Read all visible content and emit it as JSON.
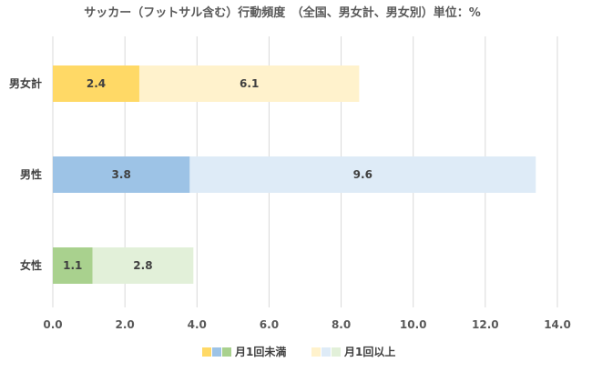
{
  "chart_data": {
    "type": "bar",
    "orientation": "horizontal",
    "stacked": true,
    "title": "サッカー（フットサル含む）行動頻度　（全国、男女計、男女別）単位：%",
    "categories": [
      "男女計",
      "男性",
      "女性"
    ],
    "series": [
      {
        "name": "月1回未満",
        "values": [
          2.4,
          3.8,
          1.1
        ],
        "colors": [
          "#ffd966",
          "#9dc3e6",
          "#a9d18e"
        ]
      },
      {
        "name": "月1回以上",
        "values": [
          6.1,
          9.6,
          2.8
        ],
        "colors": [
          "#fff2cc",
          "#deebf7",
          "#e2f0d9"
        ]
      }
    ],
    "xlim": [
      0,
      14
    ],
    "xticks": [
      "0.0",
      "2.0",
      "4.0",
      "6.0",
      "8.0",
      "10.0",
      "12.0",
      "14.0"
    ],
    "xtick_step": 2,
    "grid": true,
    "legend_position": "bottom"
  }
}
